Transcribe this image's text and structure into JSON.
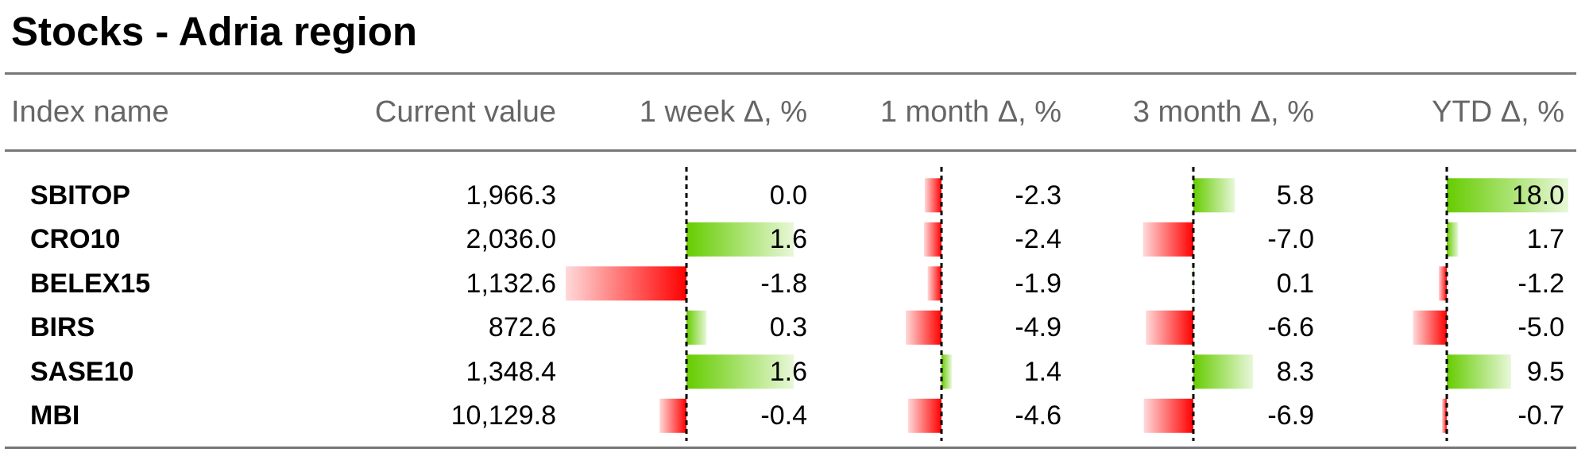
{
  "title": "Stocks - Adria region",
  "chart_data": {
    "type": "table",
    "columns": [
      "Index name",
      "Current value",
      "1 week Δ, %",
      "1 month Δ, %",
      "3 month Δ, %",
      "YTD Δ, %"
    ],
    "rows": [
      {
        "name": "SBITOP",
        "value": "1,966.3",
        "week": "0.0",
        "month": "-2.3",
        "month3": "5.8",
        "ytd": "18.0"
      },
      {
        "name": "CRO10",
        "value": "2,036.0",
        "week": "1.6",
        "month": "-2.4",
        "month3": "-7.0",
        "ytd": "1.7"
      },
      {
        "name": "BELEX15",
        "value": "1,132.6",
        "week": "-1.8",
        "month": "-1.9",
        "month3": "0.1",
        "ytd": "-1.2"
      },
      {
        "name": "BIRS",
        "value": "872.6",
        "week": "0.3",
        "month": "-4.9",
        "month3": "-6.6",
        "ytd": "-5.0"
      },
      {
        "name": "SASE10",
        "value": "1,348.4",
        "week": "1.6",
        "month": "1.4",
        "month3": "8.3",
        "ytd": "9.5"
      },
      {
        "name": "MBI",
        "value": "10,129.8",
        "week": "-0.4",
        "month": "-4.6",
        "month3": "-6.9",
        "ytd": "-0.7"
      }
    ],
    "colors": {
      "positive": "#66cc00",
      "negative": "#ff0000",
      "rule": "#777777",
      "header_text": "#666666"
    }
  }
}
